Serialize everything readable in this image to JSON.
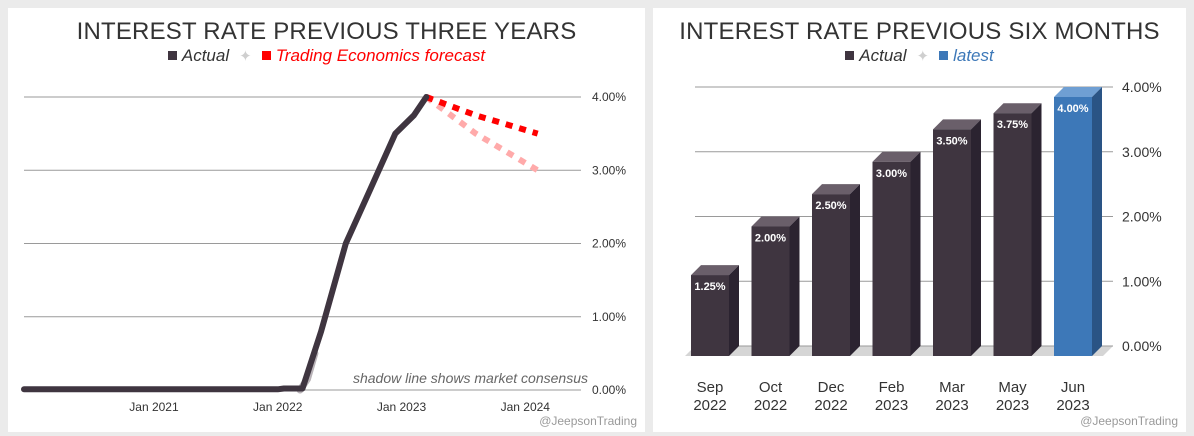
{
  "colors": {
    "actual": "#3f3540",
    "forecast": "#ff0000",
    "consensus": "#ffaaaa",
    "latest": "#3d78b8",
    "gridline": "#9a9a9a"
  },
  "chart_data": [
    {
      "type": "line",
      "title": "INTEREST RATE PREVIOUS THREE YEARS",
      "legend": {
        "actual": "Actual",
        "separator": "✦",
        "forecast": "Trading Economics forecast"
      },
      "annotation": "shadow line shows market consensus",
      "watermark": "@JeepsonTrading",
      "x_ticks": [
        {
          "label": "Jan 2021",
          "t": 2021.0
        },
        {
          "label": "Jan 2022",
          "t": 2022.0
        },
        {
          "label": "Jan 2023",
          "t": 2023.0
        },
        {
          "label": "Jan 2024",
          "t": 2024.0
        }
      ],
      "xlim": [
        2019.95,
        2024.45
      ],
      "y_ticks": [
        {
          "label": "0.00%",
          "v": 0
        },
        {
          "label": "1.00%",
          "v": 1
        },
        {
          "label": "2.00%",
          "v": 2
        },
        {
          "label": "3.00%",
          "v": 3
        },
        {
          "label": "4.00%",
          "v": 4
        }
      ],
      "ylim": [
        0,
        4
      ],
      "series": [
        {
          "name": "Actual",
          "points": [
            [
              2019.95,
              0.01
            ],
            [
              2020.5,
              0.01
            ],
            [
              2021.0,
              0.01
            ],
            [
              2021.5,
              0.01
            ],
            [
              2022.0,
              0.01
            ],
            [
              2022.05,
              0.02
            ],
            [
              2022.2,
              0.02
            ],
            [
              2022.35,
              0.8
            ],
            [
              2022.55,
              2.0
            ],
            [
              2022.75,
              2.75
            ],
            [
              2022.95,
              3.5
            ],
            [
              2023.1,
              3.75
            ],
            [
              2023.2,
              4.0
            ]
          ]
        },
        {
          "name": "Market consensus",
          "points": [
            [
              2022.18,
              0.0
            ],
            [
              2022.24,
              0.15
            ],
            [
              2022.3,
              0.5
            ]
          ]
        },
        {
          "name": "Trading Economics forecast",
          "points": [
            [
              2023.2,
              4.0
            ],
            [
              2023.6,
              3.75
            ],
            [
              2024.1,
              3.5
            ]
          ]
        },
        {
          "name": "Market consensus forecast",
          "points": [
            [
              2023.2,
              4.0
            ],
            [
              2023.6,
              3.5
            ],
            [
              2024.1,
              3.0
            ]
          ]
        }
      ]
    },
    {
      "type": "bar",
      "title": "INTEREST RATE PREVIOUS SIX MONTHS",
      "legend": {
        "actual": "Actual",
        "separator": "✦",
        "latest": "latest"
      },
      "watermark": "@JeepsonTrading",
      "categories": [
        {
          "month": "Sep",
          "year": "2022"
        },
        {
          "month": "Oct",
          "year": "2022"
        },
        {
          "month": "Dec",
          "year": "2022"
        },
        {
          "month": "Feb",
          "year": "2023"
        },
        {
          "month": "Mar",
          "year": "2023"
        },
        {
          "month": "May",
          "year": "2023"
        },
        {
          "month": "Jun",
          "year": "2023"
        }
      ],
      "values": [
        1.25,
        2.0,
        2.5,
        3.0,
        3.5,
        3.75,
        4.0
      ],
      "labels": [
        "1.25%",
        "2.00%",
        "2.50%",
        "3.00%",
        "3.50%",
        "3.75%",
        "4.00%"
      ],
      "y_ticks": [
        {
          "label": "0.00%",
          "v": 0
        },
        {
          "label": "1.00%",
          "v": 1
        },
        {
          "label": "2.00%",
          "v": 2
        },
        {
          "label": "3.00%",
          "v": 3
        },
        {
          "label": "4.00%",
          "v": 4
        }
      ],
      "ylim": [
        0,
        4
      ]
    }
  ]
}
